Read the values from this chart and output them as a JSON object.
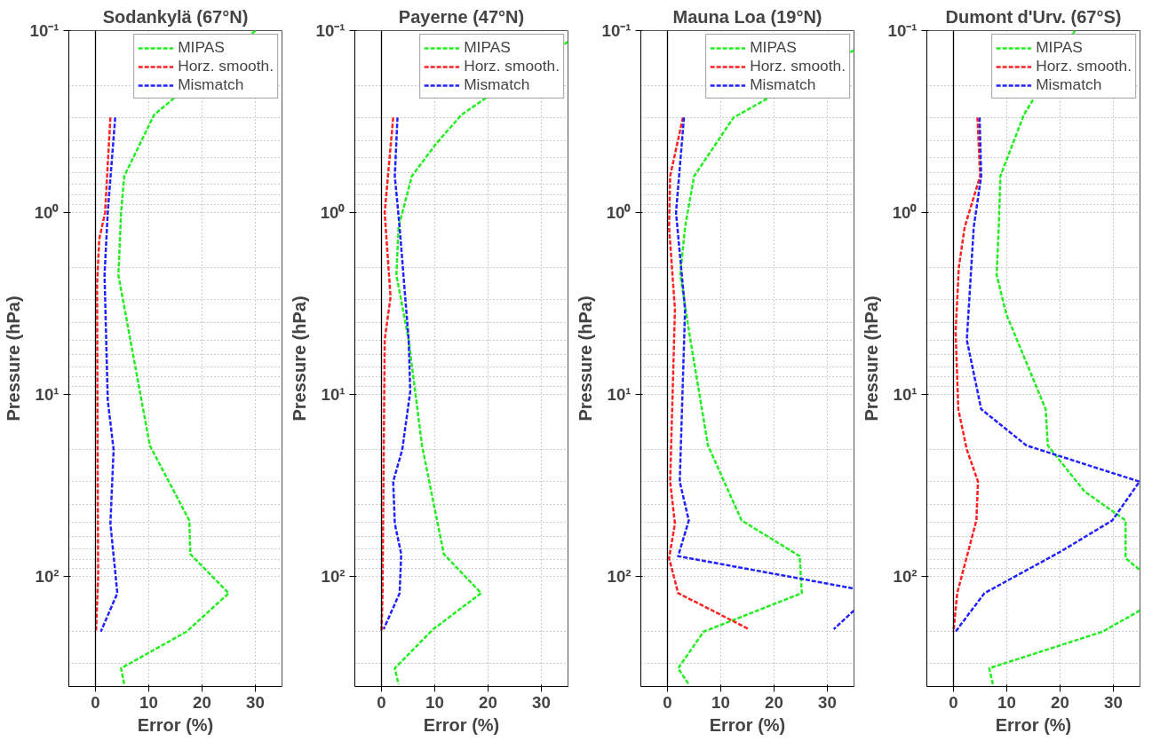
{
  "chart_data": [
    {
      "type": "line",
      "title": "Sodankylä (67°N)",
      "xlabel": "Error (%)",
      "ylabel": "Pressure (hPa)",
      "xlim": [
        -5,
        35
      ],
      "ylim": [
        400,
        0.1
      ],
      "xticks": [
        0,
        10,
        20,
        30
      ],
      "yticks": [
        {
          "value": 0.1,
          "label": "10⁻¹"
        },
        {
          "value": 1,
          "label": "10⁰"
        },
        {
          "value": 10,
          "label": "10¹"
        },
        {
          "value": 100,
          "label": "10²"
        }
      ],
      "log": "y",
      "grid": true,
      "legend": "top right",
      "line_style": "dashed",
      "ref_lines": [
        {
          "axis": "x",
          "value": 0,
          "color": "#000000"
        }
      ],
      "series": [
        {
          "name": "MIPAS",
          "color": "#22ee22",
          "x": [
            30,
            11,
            5.4,
            4.8,
            4.3,
            10.2,
            17.6,
            17.8,
            25,
            17.1,
            4.8,
            5.4
          ],
          "values": [
            0.1,
            0.29,
            0.63,
            1,
            2.2,
            19,
            49,
            75,
            123,
            200,
            318,
            390
          ]
        },
        {
          "name": "Horz. smooth.",
          "color": "#ff2222",
          "x": [
            2.8,
            1.8,
            0.7,
            0.3,
            0.4,
            0.5,
            0.1
          ],
          "values": [
            0.3,
            1,
            1.4,
            2.5,
            20,
            100,
            200
          ]
        },
        {
          "name": "Mismatch",
          "color": "#2222ff",
          "x": [
            3.7,
            2.3,
            1.7,
            2.3,
            3.4,
            2.8,
            4.1,
            1.0
          ],
          "values": [
            0.3,
            1,
            2.2,
            10.7,
            20,
            51,
            123,
            200
          ]
        }
      ]
    },
    {
      "type": "line",
      "title": "Payerne (47°N)",
      "xlabel": "Error (%)",
      "ylabel": "Pressure (hPa)",
      "xlim": [
        -5,
        35
      ],
      "ylim": [
        400,
        0.1
      ],
      "xticks": [
        0,
        10,
        20,
        30
      ],
      "yticks": [
        {
          "value": 0.1,
          "label": "10⁻¹"
        },
        {
          "value": 1,
          "label": "10⁰"
        },
        {
          "value": 10,
          "label": "10¹"
        },
        {
          "value": 100,
          "label": "10²"
        }
      ],
      "log": "y",
      "grid": true,
      "legend": "top right",
      "line_style": "dashed",
      "ref_lines": [
        {
          "axis": "x",
          "value": 0,
          "color": "#000000"
        }
      ],
      "series": [
        {
          "name": "MIPAS",
          "color": "#22ee22",
          "x": [
            35,
            15,
            10.2,
            5.7,
            3.2,
            2.8,
            5.1,
            7.6,
            11.7,
            18.7,
            9.7,
            2.5,
            3.2
          ],
          "values": [
            0.115,
            0.29,
            0.42,
            0.63,
            1.2,
            2.2,
            5,
            19,
            75,
            123,
            194,
            318,
            390
          ]
        },
        {
          "name": "Horz. smooth.",
          "color": "#ff2222",
          "x": [
            2.2,
            0.6,
            1.7,
            0.6,
            0.2,
            0
          ],
          "values": [
            0.3,
            1,
            2.9,
            5,
            123,
            200
          ]
        },
        {
          "name": "Mismatch",
          "color": "#2222ff",
          "x": [
            3,
            2.5,
            3.4,
            5.1,
            5.4,
            3.9,
            2.2,
            2.5,
            3.7,
            3.4,
            0.4
          ],
          "values": [
            0.3,
            0.63,
            1.2,
            5,
            9.6,
            20,
            30,
            51,
            75,
            123,
            194
          ]
        }
      ]
    },
    {
      "type": "line",
      "title": "Mauna Loa (19°N)",
      "xlabel": "Error (%)",
      "ylabel": "Pressure (hPa)",
      "xlim": [
        -5,
        35
      ],
      "ylim": [
        400,
        0.1
      ],
      "xticks": [
        0,
        10,
        20,
        30
      ],
      "yticks": [
        {
          "value": 0.1,
          "label": "10⁻¹"
        },
        {
          "value": 1,
          "label": "10⁰"
        },
        {
          "value": 10,
          "label": "10¹"
        },
        {
          "value": 100,
          "label": "10²"
        }
      ],
      "log": "y",
      "grid": true,
      "legend": "top right",
      "line_style": "dashed",
      "ref_lines": [
        {
          "axis": "x",
          "value": 0,
          "color": "#000000"
        }
      ],
      "series": [
        {
          "name": "MIPAS",
          "color": "#22ee22",
          "x": [
            35,
            12.4,
            5,
            3.3,
            2.4,
            4.3,
            7.6,
            13.9,
            24.8,
            25.2,
            6.8,
            2,
            4
          ],
          "values": [
            0.128,
            0.3,
            0.63,
            1.2,
            2.2,
            5,
            19,
            49,
            77,
            123,
            200,
            318,
            390
          ]
        },
        {
          "name": "Horz. smooth.",
          "color": "#ff2222",
          "x": [
            2.9,
            0.5,
            0.3,
            1.4,
            0.5,
            1.4,
            0.3,
            2,
            15.3
          ],
          "values": [
            0.3,
            0.63,
            1.2,
            3.4,
            30,
            51,
            79,
            123,
            194
          ]
        },
        {
          "name": "Mismatch",
          "color": "#2222ff",
          "x": [
            3.1,
            1.6,
            3.3,
            2.3,
            4,
            2,
            35,
            null,
            35,
            31.2
          ],
          "values": [
            0.3,
            1,
            3.4,
            30,
            49,
            77,
            116,
            null,
            153,
            194
          ]
        }
      ]
    },
    {
      "type": "line",
      "title": "Dumont d'Urv. (67°S)",
      "xlabel": "Error (%)",
      "ylabel": "Pressure (hPa)",
      "xlim": [
        -5,
        35
      ],
      "ylim": [
        400,
        0.1
      ],
      "xticks": [
        0,
        10,
        20,
        30
      ],
      "yticks": [
        {
          "value": 0.1,
          "label": "10⁻¹"
        },
        {
          "value": 1,
          "label": "10⁰"
        },
        {
          "value": 10,
          "label": "10¹"
        },
        {
          "value": 100,
          "label": "10²"
        }
      ],
      "log": "y",
      "grid": true,
      "legend": "top right",
      "line_style": "dashed",
      "ref_lines": [
        {
          "axis": "x",
          "value": 0,
          "color": "#000000"
        }
      ],
      "series": [
        {
          "name": "MIPAS",
          "color": "#22ee22",
          "x": [
            22.8,
            13.2,
            8.8,
            8.5,
            8.1,
            9.9,
            17.3,
            17.7,
            24.6,
            32.3,
            32.3,
            35,
            null,
            35,
            28,
            6.7,
            7.4
          ],
          "values": [
            0.1,
            0.29,
            0.63,
            1.2,
            2.2,
            3.6,
            12,
            19,
            34,
            49,
            79,
            92,
            null,
            153,
            200,
            318,
            390
          ]
        },
        {
          "name": "Horz. smooth.",
          "color": "#ff2222",
          "x": [
            4.5,
            5.0,
            2.1,
            1,
            0.4,
            0.9,
            2.5,
            4.6,
            4.3,
            0.7,
            0
          ],
          "values": [
            0.3,
            0.63,
            1.2,
            2,
            4.5,
            12,
            20,
            30,
            49,
            123,
            200
          ]
        },
        {
          "name": "Mismatch",
          "color": "#2222ff",
          "x": [
            4.9,
            5.2,
            3.8,
            2.5,
            5.2,
            13.7,
            34.9,
            29.8,
            20,
            5.8,
            0.4
          ],
          "values": [
            0.3,
            0.63,
            1.2,
            5,
            12,
            19,
            30,
            49,
            73,
            123,
            200
          ]
        }
      ]
    }
  ]
}
